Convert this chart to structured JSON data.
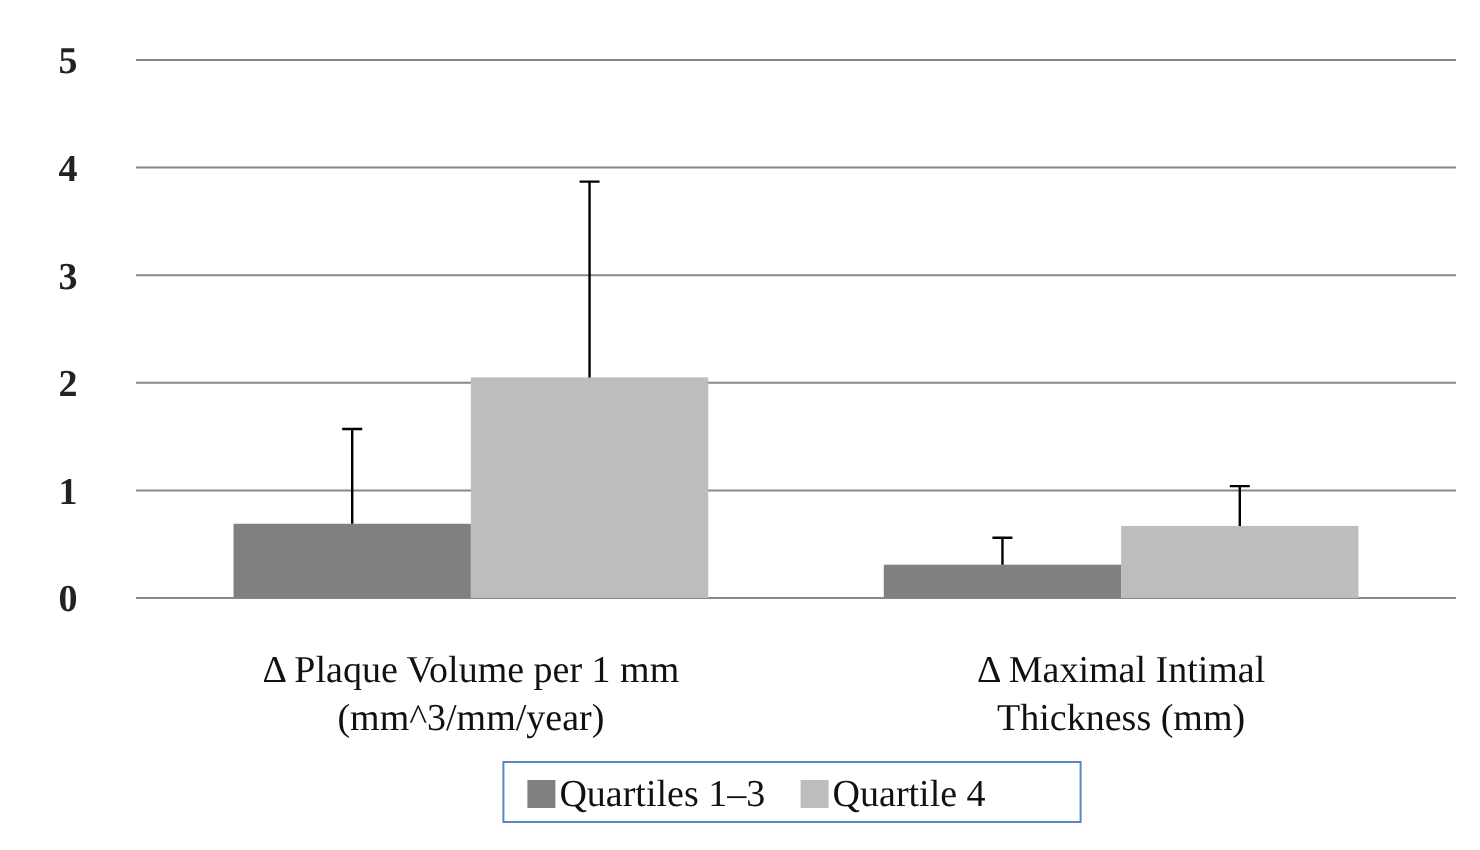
{
  "chart_data": {
    "type": "bar",
    "categories": [
      "Δ Plaque Volume per 1 mm (mm^3/mm/year)",
      "Δ Maximal Intimal Thickness (mm)"
    ],
    "series": [
      {
        "name": "Quartiles 1–3",
        "color": "#7f8082",
        "values": [
          0.69,
          0.31
        ],
        "errors": [
          [
            0.69,
            1.57
          ],
          [
            0.31,
            0.56
          ]
        ]
      },
      {
        "name": "Quartile 4",
        "color": "#bcbdbf",
        "values": [
          2.05,
          0.67
        ],
        "errors": [
          [
            2.05,
            3.87
          ],
          [
            0.67,
            1.04
          ]
        ]
      }
    ],
    "ylim": [
      0,
      5
    ],
    "yticks": [
      0,
      1,
      2,
      3,
      4,
      5
    ],
    "grid": "y",
    "legend": "bottom"
  }
}
